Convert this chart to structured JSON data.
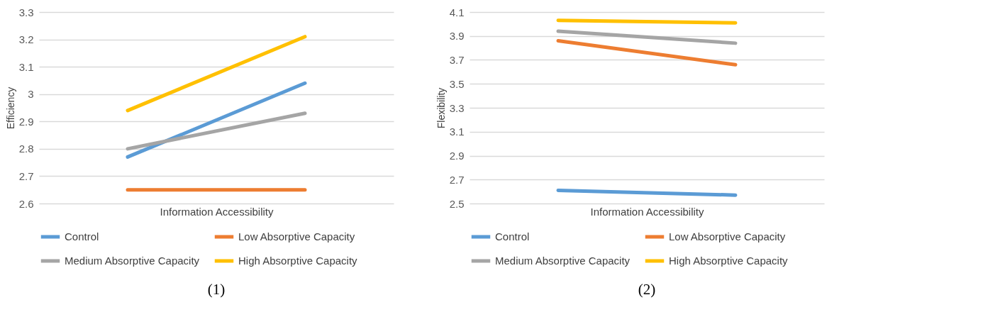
{
  "chart_data": [
    {
      "type": "line",
      "ylabel": "Efficiency",
      "xlabel": "Information Accessibility",
      "categories": [
        null,
        null
      ],
      "ylim": [
        2.6,
        3.3
      ],
      "yticks": [
        2.6,
        2.7,
        2.8,
        2.9,
        3,
        3.1,
        3.2,
        3.3
      ],
      "grid": "y",
      "legend": "bottom",
      "annotations": [
        "(1)"
      ],
      "series": [
        {
          "name": "Control",
          "color": "#5b9bd5",
          "values": [
            2.77,
            3.04
          ]
        },
        {
          "name": "Low Absorptive Capacity",
          "color": "#ed7d31",
          "values": [
            2.65,
            2.65
          ]
        },
        {
          "name": "Medium Absorptive Capacity",
          "color": "#a5a5a5",
          "values": [
            2.8,
            2.93
          ]
        },
        {
          "name": "High Absorptive Capacity",
          "color": "#ffc000",
          "values": [
            2.94,
            3.21
          ]
        }
      ]
    },
    {
      "type": "line",
      "ylabel": "Flexibility",
      "xlabel": "Information Accessibility",
      "categories": [
        null,
        null
      ],
      "ylim": [
        2.5,
        4.1
      ],
      "yticks": [
        2.5,
        2.7,
        2.9,
        3.1,
        3.3,
        3.5,
        3.7,
        3.9,
        4.1
      ],
      "grid": "y",
      "legend": "bottom",
      "annotations": [
        "(2)"
      ],
      "series": [
        {
          "name": "Control",
          "color": "#5b9bd5",
          "values": [
            2.61,
            2.57
          ]
        },
        {
          "name": "Low Absorptive Capacity",
          "color": "#ed7d31",
          "values": [
            3.86,
            3.66
          ]
        },
        {
          "name": "Medium Absorptive Capacity",
          "color": "#a5a5a5",
          "values": [
            3.94,
            3.84
          ]
        },
        {
          "name": "High Absorptive Capacity",
          "color": "#ffc000",
          "values": [
            4.03,
            4.01
          ]
        }
      ]
    }
  ]
}
